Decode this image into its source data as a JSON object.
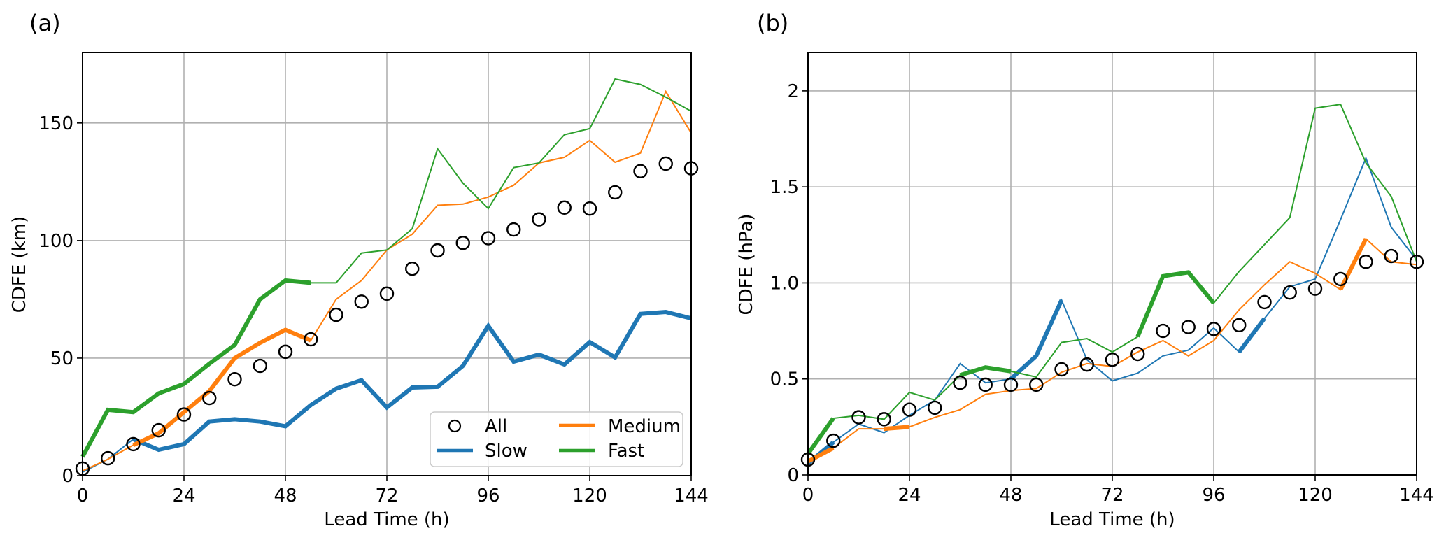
{
  "chart_data": [
    {
      "type": "line",
      "panel_label": "(a)",
      "xlabel": "Lead Time (h)",
      "ylabel": "CDFE (km)",
      "xlim": [
        0,
        144
      ],
      "ylim": [
        0,
        180
      ],
      "xticks": [
        0,
        24,
        48,
        72,
        96,
        120,
        144
      ],
      "xtick_labels": [
        "0",
        "24",
        "48",
        "72",
        "96",
        "120",
        "144"
      ],
      "yticks": [
        0,
        50,
        100,
        150
      ],
      "ytick_labels": [
        "0",
        "50",
        "100",
        "150"
      ],
      "grid": true,
      "legend": {
        "placement": "lower-right",
        "columns": 2,
        "entries": [
          "All",
          "Medium",
          "Slow",
          "Fast"
        ]
      },
      "x": [
        0,
        6,
        12,
        18,
        24,
        30,
        36,
        42,
        48,
        54,
        60,
        66,
        72,
        78,
        84,
        90,
        96,
        102,
        108,
        114,
        120,
        126,
        132,
        138,
        144
      ],
      "series": [
        {
          "name": "All",
          "style": "open-circle",
          "color": "#000000",
          "values": [
            3,
            7.4,
            13.4,
            19.3,
            26,
            33,
            41,
            46.7,
            52.7,
            58,
            68.4,
            74,
            77.4,
            88,
            95.8,
            99,
            101,
            104.7,
            109,
            114,
            113.6,
            120.5,
            129.5,
            132.7,
            130.7
          ]
        },
        {
          "name": "Slow",
          "style": "line",
          "color": "#1f77b4",
          "values": [
            1.5,
            7,
            15.5,
            11,
            13.4,
            23,
            24,
            23,
            21,
            30,
            37,
            40.6,
            29,
            37.5,
            37.8,
            46.7,
            63.7,
            48.5,
            51.5,
            47.3,
            56.8,
            50.3,
            68.8,
            69.6,
            66.9
          ],
          "thick_ranges": [
            [
              12,
              144
            ]
          ]
        },
        {
          "name": "Medium",
          "style": "line",
          "color": "#ff7f0e",
          "values": [
            2,
            7,
            13,
            18,
            27,
            36,
            50,
            56.5,
            62,
            57.5,
            75,
            83,
            96,
            102.7,
            115,
            115.5,
            118.5,
            123.5,
            133,
            135.4,
            142.6,
            133.3,
            137.2,
            163.4,
            145.8
          ],
          "thick_ranges": [
            [
              12,
              54
            ]
          ]
        },
        {
          "name": "Fast",
          "style": "line",
          "color": "#2ca02c",
          "values": [
            8,
            28,
            27,
            35,
            39,
            47.6,
            55.6,
            75,
            83,
            82,
            82,
            94.7,
            96,
            105,
            139,
            124.4,
            113.6,
            131,
            133,
            145,
            147.6,
            168.7,
            166.4,
            161,
            155
          ],
          "thick_ranges": [
            [
              0,
              54
            ]
          ]
        }
      ]
    },
    {
      "type": "line",
      "panel_label": "(b)",
      "xlabel": "Lead Time (h)",
      "ylabel": "CDFE (hPa)",
      "xlim": [
        0,
        144
      ],
      "ylim": [
        0,
        2.2
      ],
      "xticks": [
        0,
        24,
        48,
        72,
        96,
        120,
        144
      ],
      "xtick_labels": [
        "0",
        "24",
        "48",
        "72",
        "96",
        "120",
        "144"
      ],
      "yticks": [
        0,
        0.5,
        1.0,
        1.5,
        2.0
      ],
      "ytick_labels": [
        "0",
        "0.5",
        "1.0",
        "1.5",
        "2"
      ],
      "grid": true,
      "x": [
        0,
        6,
        12,
        18,
        24,
        30,
        36,
        42,
        48,
        54,
        60,
        66,
        72,
        78,
        84,
        90,
        96,
        102,
        108,
        114,
        120,
        126,
        132,
        138,
        144
      ],
      "series": [
        {
          "name": "All",
          "style": "open-circle",
          "color": "#000000",
          "values": [
            0.08,
            0.178,
            0.3,
            0.29,
            0.34,
            0.35,
            0.48,
            0.47,
            0.47,
            0.47,
            0.55,
            0.575,
            0.6,
            0.63,
            0.75,
            0.77,
            0.76,
            0.78,
            0.9,
            0.95,
            0.97,
            1.02,
            1.11,
            1.14,
            1.11
          ]
        },
        {
          "name": "Slow",
          "style": "line",
          "color": "#1f77b4",
          "values": [
            0.06,
            0.17,
            0.265,
            0.22,
            0.31,
            0.39,
            0.58,
            0.48,
            0.5,
            0.62,
            0.91,
            0.6,
            0.49,
            0.53,
            0.62,
            0.65,
            0.765,
            0.64,
            0.815,
            0.98,
            1.02,
            1.33,
            1.65,
            1.29,
            1.12
          ],
          "thick_ranges": [
            [
              0,
              6
            ],
            [
              48,
              60
            ],
            [
              102,
              108
            ]
          ]
        },
        {
          "name": "Medium",
          "style": "line",
          "color": "#ff7f0e",
          "values": [
            0.07,
            0.14,
            0.24,
            0.24,
            0.25,
            0.3,
            0.34,
            0.42,
            0.44,
            0.45,
            0.535,
            0.58,
            0.565,
            0.64,
            0.7,
            0.62,
            0.7,
            0.86,
            0.99,
            1.11,
            1.05,
            0.965,
            1.23,
            1.11,
            1.095
          ],
          "thick_ranges": [
            [
              0,
              6
            ],
            [
              18,
              24
            ],
            [
              126,
              132
            ]
          ]
        },
        {
          "name": "Fast",
          "style": "line",
          "color": "#2ca02c",
          "values": [
            0.11,
            0.295,
            0.31,
            0.29,
            0.43,
            0.39,
            0.52,
            0.56,
            0.54,
            0.51,
            0.69,
            0.71,
            0.64,
            0.72,
            1.035,
            1.055,
            0.895,
            1.06,
            1.2,
            1.34,
            1.91,
            1.93,
            1.625,
            1.45,
            1.11
          ],
          "thick_ranges": [
            [
              0,
              6
            ],
            [
              36,
              48
            ],
            [
              78,
              96
            ]
          ]
        }
      ]
    }
  ]
}
